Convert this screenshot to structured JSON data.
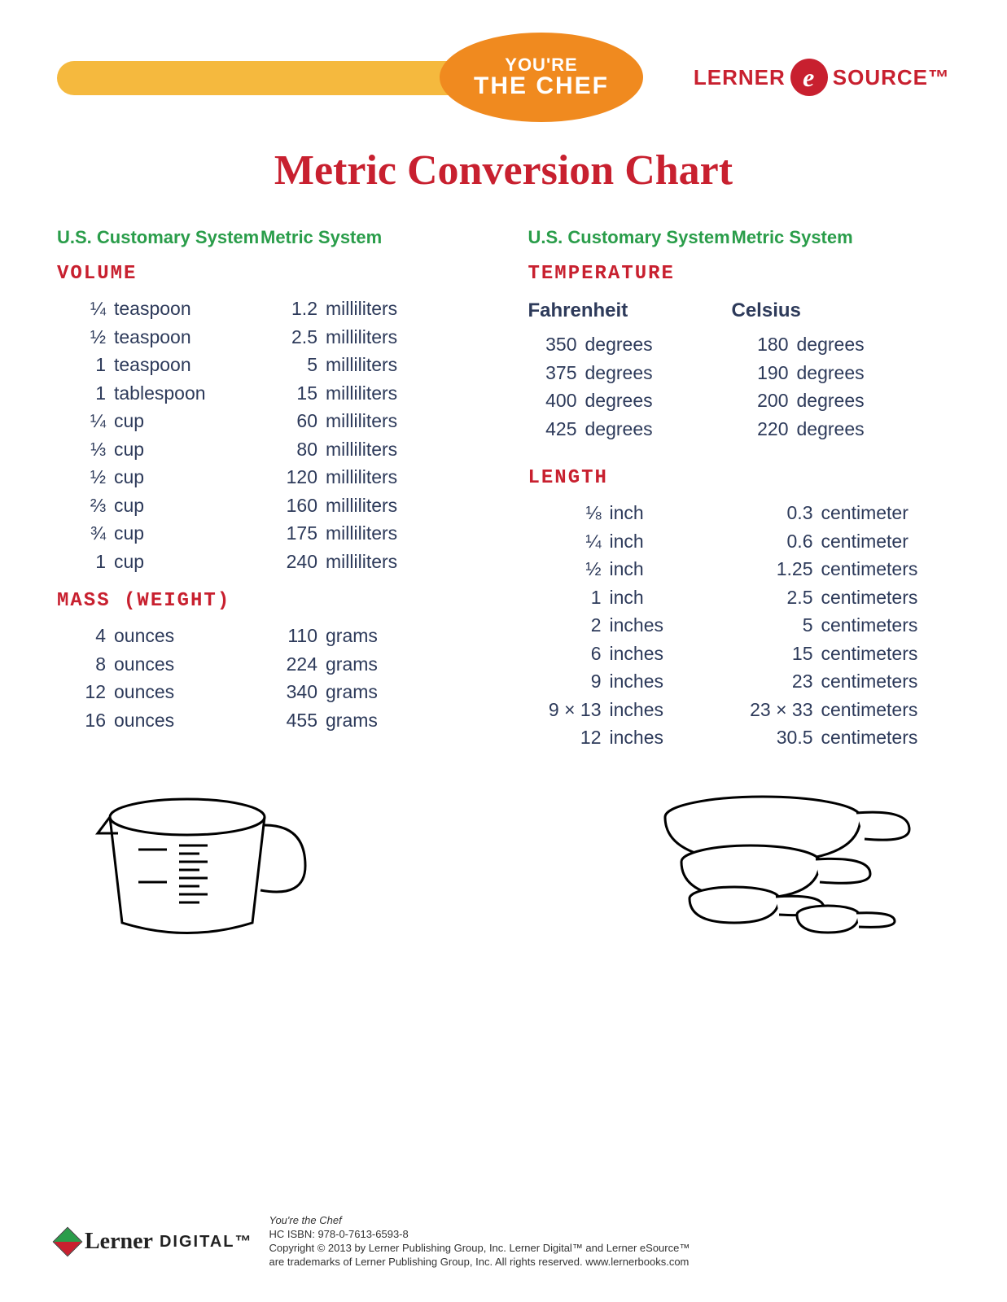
{
  "colors": {
    "red": "#c8202f",
    "green": "#2a9d4a",
    "navy": "#2d3a5a",
    "spoon_handle": "#f5b93e",
    "spoon_bowl": "#f08a1f",
    "background": "#ffffff"
  },
  "header": {
    "spoon_line1": "YOU'RE",
    "spoon_line2": "THE CHEF",
    "brand_left": "LERNER",
    "brand_e": "e",
    "brand_right": "SOURCE™"
  },
  "title": "Metric Conversion Chart",
  "column_headers": {
    "us": "U.S. Customary System",
    "metric": "Metric System"
  },
  "sections": {
    "volume": {
      "title": "VOLUME",
      "rows": [
        {
          "qty": "¼",
          "unit": "teaspoon",
          "mqty": "1.2",
          "munit": "milliliters"
        },
        {
          "qty": "½",
          "unit": "teaspoon",
          "mqty": "2.5",
          "munit": "milliliters"
        },
        {
          "qty": "1",
          "unit": "teaspoon",
          "mqty": "5",
          "munit": "milliliters"
        },
        {
          "qty": "1",
          "unit": "tablespoon",
          "mqty": "15",
          "munit": "milliliters"
        },
        {
          "qty": "¼",
          "unit": "cup",
          "mqty": "60",
          "munit": "milliliters"
        },
        {
          "qty": "⅓",
          "unit": "cup",
          "mqty": "80",
          "munit": "milliliters"
        },
        {
          "qty": "½",
          "unit": "cup",
          "mqty": "120",
          "munit": "milliliters"
        },
        {
          "qty": "⅔",
          "unit": "cup",
          "mqty": "160",
          "munit": "milliliters"
        },
        {
          "qty": "¾",
          "unit": "cup",
          "mqty": "175",
          "munit": "milliliters"
        },
        {
          "qty": "1",
          "unit": "cup",
          "mqty": "240",
          "munit": "milliliters"
        }
      ]
    },
    "mass": {
      "title": "MASS (WEIGHT)",
      "rows": [
        {
          "qty": "4",
          "unit": "ounces",
          "mqty": "110",
          "munit": "grams"
        },
        {
          "qty": "8",
          "unit": "ounces",
          "mqty": "224",
          "munit": "grams"
        },
        {
          "qty": "12",
          "unit": "ounces",
          "mqty": "340",
          "munit": "grams"
        },
        {
          "qty": "16",
          "unit": "ounces",
          "mqty": "455",
          "munit": "grams"
        }
      ]
    },
    "temperature": {
      "title": "TEMPERATURE",
      "sub_us": "Fahrenheit",
      "sub_metric": "Celsius",
      "rows": [
        {
          "qty": "350",
          "unit": "degrees",
          "mqty": "180",
          "munit": "degrees"
        },
        {
          "qty": "375",
          "unit": "degrees",
          "mqty": "190",
          "munit": "degrees"
        },
        {
          "qty": "400",
          "unit": "degrees",
          "mqty": "200",
          "munit": "degrees"
        },
        {
          "qty": "425",
          "unit": "degrees",
          "mqty": "220",
          "munit": "degrees"
        }
      ]
    },
    "length": {
      "title": "LENGTH",
      "rows": [
        {
          "qty": "⅛",
          "unit": "inch",
          "mqty": "0.3",
          "munit": "centimeter"
        },
        {
          "qty": "¼",
          "unit": "inch",
          "mqty": "0.6",
          "munit": "centimeter"
        },
        {
          "qty": "½",
          "unit": "inch",
          "mqty": "1.25",
          "munit": "centimeters"
        },
        {
          "qty": "1",
          "unit": "inch",
          "mqty": "2.5",
          "munit": "centimeters"
        },
        {
          "qty": "2",
          "unit": "inches",
          "mqty": "5",
          "munit": "centimeters"
        },
        {
          "qty": "6",
          "unit": "inches",
          "mqty": "15",
          "munit": "centimeters"
        },
        {
          "qty": "9",
          "unit": "inches",
          "mqty": "23",
          "munit": "centimeters"
        },
        {
          "qty": "9 × 13",
          "unit": "inches",
          "mqty": "23 × 33",
          "munit": "centimeters"
        },
        {
          "qty": "12",
          "unit": "inches",
          "mqty": "30.5",
          "munit": "centimeters"
        }
      ]
    }
  },
  "footer": {
    "logo_script": "Lerner",
    "logo_digital": "DIGITAL™",
    "line1": "You're the Chef",
    "line2": "HC ISBN: 978-0-7613-6593-8",
    "line3": "Copyright © 2013 by Lerner Publishing Group, Inc. Lerner Digital™ and Lerner eSource™",
    "line4": "are trademarks of Lerner Publishing Group, Inc. All rights reserved. www.lernerbooks.com"
  }
}
